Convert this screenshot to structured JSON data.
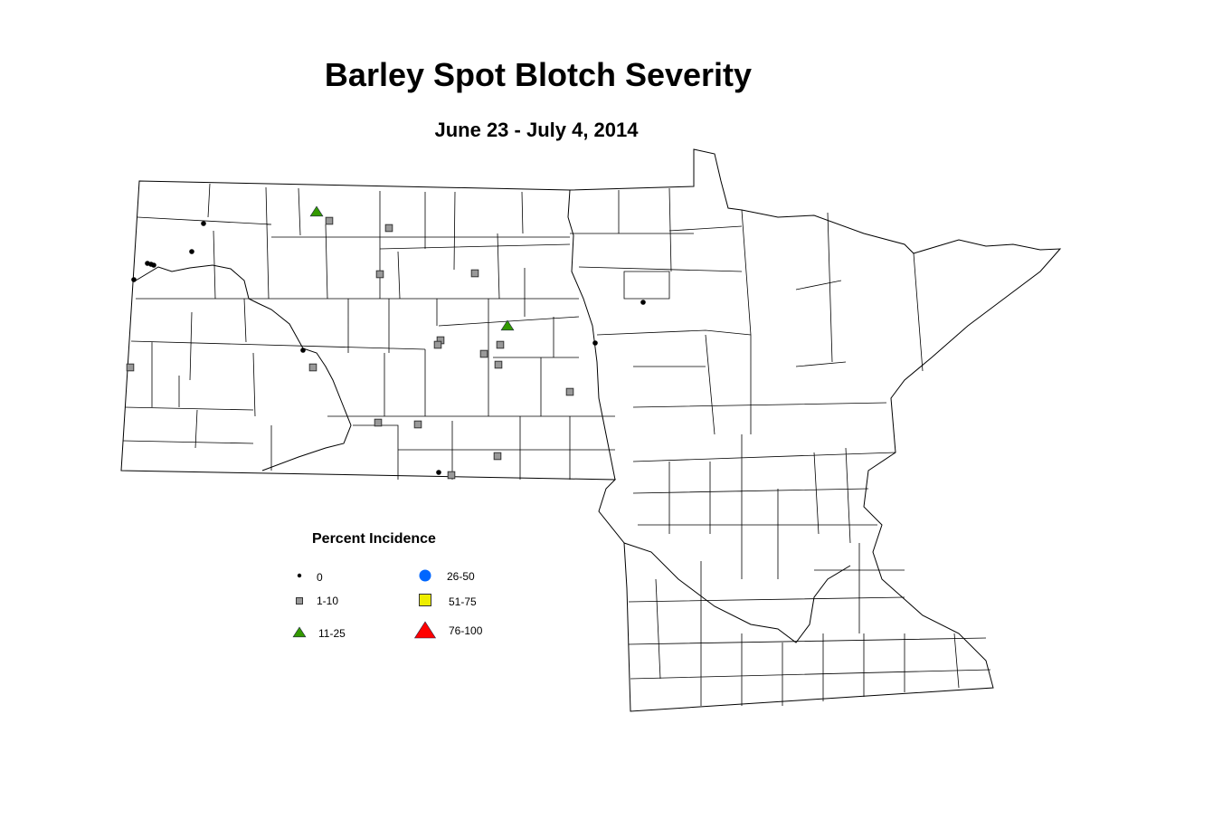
{
  "title": "Barley Spot Blotch Severity",
  "subtitle": "June 23 - July 4, 2014",
  "legend": {
    "title": "Percent Incidence",
    "items": [
      {
        "label": "0",
        "symbol": "dot",
        "color": "#000000"
      },
      {
        "label": "1-10",
        "symbol": "square",
        "color": "#999999"
      },
      {
        "label": "11-25",
        "symbol": "triangle",
        "color": "#339900"
      },
      {
        "label": "26-50",
        "symbol": "circle",
        "color": "#0066ff"
      },
      {
        "label": "51-75",
        "symbol": "square",
        "color": "#eeee00"
      },
      {
        "label": "76-100",
        "symbol": "triangle",
        "color": "#ff0000"
      }
    ]
  },
  "observation_counts": {
    "0": 10,
    "1-10": 16,
    "11-25": 2,
    "26-50": 0,
    "51-75": 0,
    "76-100": 0
  }
}
